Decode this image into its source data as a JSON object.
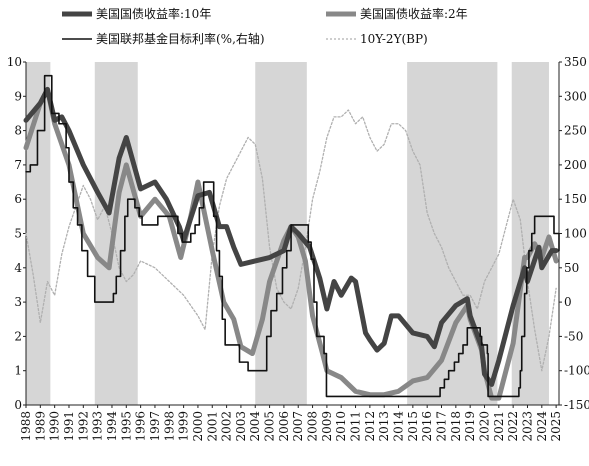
{
  "chart_data": {
    "type": "line",
    "title": "",
    "legend": {
      "placement": "top",
      "entries": [
        {
          "key": "ust10y",
          "label": "美国国债收益率:10年"
        },
        {
          "key": "ust2y",
          "label": "美国国债收益率:2年"
        },
        {
          "key": "ffr",
          "label": "美国联邦基金目标利率(%,右轴)"
        },
        {
          "key": "spread",
          "label": "10Y-2Y(BP)"
        }
      ]
    },
    "left_axis": {
      "min": 0,
      "max": 10,
      "ticks": [
        "0",
        "1",
        "2",
        "3",
        "4",
        "5",
        "6",
        "7",
        "8",
        "9",
        "10"
      ]
    },
    "right_axis": {
      "min": -150,
      "max": 350,
      "ticks": [
        "-150",
        "-100",
        "-50",
        "0",
        "50",
        "100",
        "150",
        "200",
        "250",
        "300",
        "350"
      ]
    },
    "x_axis": {
      "min": 1988,
      "max": 2025.2,
      "ticks": [
        "1988",
        "1989",
        "1990",
        "1991",
        "1992",
        "1993",
        "1994",
        "1995",
        "1996",
        "1997",
        "1998",
        "1999",
        "2000",
        "2001",
        "2002",
        "2003",
        "2004",
        "2005",
        "2006",
        "2007",
        "2008",
        "2009",
        "2010",
        "2011",
        "2012",
        "2013",
        "2014",
        "2015",
        "2016",
        "2017",
        "2018",
        "2019",
        "2020",
        "2021",
        "2022",
        "2023",
        "2024",
        "2025"
      ]
    },
    "shaded_periods": [
      [
        1988.0,
        1989.7
      ],
      [
        1992.8,
        1995.8
      ],
      [
        2004.0,
        2007.6
      ],
      [
        2014.6,
        2020.9
      ],
      [
        2021.9,
        2024.5
      ]
    ],
    "series": [
      {
        "key": "ust10y",
        "color": "#444444",
        "axis": "left",
        "x": [
          1988,
          1989,
          1989.5,
          1990,
          1990.5,
          1991,
          1992,
          1993,
          1993.8,
          1994.5,
          1995,
          1996,
          1997,
          1997.8,
          1998.7,
          1999,
          2000,
          2000.8,
          2001.5,
          2002,
          2002.5,
          2003,
          2004,
          2005,
          2006,
          2006.5,
          2007,
          2007.8,
          2008.5,
          2009,
          2009.5,
          2010,
          2010.7,
          2011,
          2011.7,
          2012,
          2012.5,
          2013,
          2013.5,
          2014,
          2015,
          2016,
          2016.5,
          2017,
          2018,
          2018.8,
          2019,
          2019.8,
          2020,
          2020.5,
          2021,
          2022,
          2022.8,
          2023,
          2023.8,
          2024,
          2024.7,
          2025
        ],
        "y": [
          8.3,
          8.8,
          9.2,
          8.3,
          8.4,
          8.0,
          7.0,
          6.2,
          5.6,
          7.2,
          7.8,
          6.3,
          6.5,
          6.0,
          5.2,
          4.8,
          6.1,
          6.2,
          5.2,
          5.2,
          4.6,
          4.1,
          4.2,
          4.3,
          4.5,
          5.2,
          5.0,
          4.6,
          3.7,
          2.8,
          3.6,
          3.2,
          3.7,
          3.6,
          2.1,
          1.9,
          1.6,
          1.8,
          2.6,
          2.6,
          2.1,
          2.0,
          1.7,
          2.4,
          2.9,
          3.1,
          2.6,
          1.7,
          0.9,
          0.6,
          1.3,
          2.9,
          4.0,
          3.6,
          4.6,
          4.0,
          4.5,
          4.5
        ]
      },
      {
        "key": "ust2y",
        "color": "#888888",
        "axis": "left",
        "x": [
          1988,
          1989,
          1989.5,
          1990,
          1991,
          1992,
          1993,
          1993.8,
          1994.5,
          1995,
          1996,
          1997,
          1998,
          1998.8,
          1999.5,
          2000,
          2001,
          2001.8,
          2002.5,
          2003,
          2003.8,
          2004.5,
          2005,
          2006,
          2006.5,
          2007,
          2007.5,
          2008,
          2008.7,
          2009,
          2010,
          2011,
          2012,
          2013,
          2014,
          2015,
          2016,
          2017,
          2018,
          2018.8,
          2019,
          2019.8,
          2020,
          2020.5,
          2021,
          2022,
          2022.8,
          2023,
          2023.5,
          2024,
          2024.5,
          2025
        ],
        "y": [
          7.5,
          8.8,
          9.2,
          8.2,
          7.0,
          5.0,
          4.3,
          4.0,
          6.2,
          7.0,
          5.5,
          6.0,
          5.5,
          4.3,
          5.5,
          6.5,
          4.5,
          3.0,
          2.5,
          1.7,
          1.5,
          2.5,
          3.6,
          4.8,
          5.2,
          4.9,
          4.2,
          2.6,
          1.5,
          1.0,
          0.8,
          0.4,
          0.3,
          0.3,
          0.4,
          0.7,
          0.8,
          1.3,
          2.4,
          2.9,
          2.5,
          1.6,
          1.0,
          0.2,
          0.2,
          1.8,
          4.3,
          4.3,
          4.7,
          4.3,
          4.9,
          4.2
        ]
      },
      {
        "key": "ffr",
        "color": "#111111",
        "axis": "right",
        "x": [
          1988,
          1988.3,
          1988.8,
          1989.3,
          1989.8,
          1990.3,
          1990.8,
          1991,
          1991.3,
          1991.6,
          1991.9,
          1992.3,
          1992.8,
          1993.5,
          1994.1,
          1994.3,
          1994.6,
          1994.9,
          1995.1,
          1995.6,
          1995.9,
          1996.1,
          1996.9,
          1997.2,
          1998.6,
          1998.9,
          1999.5,
          1999.8,
          2000.1,
          2000.4,
          2001.1,
          2001.3,
          2001.5,
          2001.7,
          2001.9,
          2002.9,
          2003.5,
          2004.5,
          2004.8,
          2005.1,
          2005.5,
          2005.9,
          2006.2,
          2006.5,
          2007.7,
          2007.9,
          2008.1,
          2008.3,
          2008.8,
          2008.97,
          2015.9,
          2016.9,
          2017.2,
          2017.5,
          2017.9,
          2018.2,
          2018.5,
          2018.8,
          2019.5,
          2019.7,
          2019.8,
          2020.2,
          2020.25,
          2022.2,
          2022.4,
          2022.5,
          2022.6,
          2022.8,
          2022.95,
          2023.1,
          2023.3,
          2023.5,
          2024.7,
          2024.85,
          2025.2
        ],
        "y": [
          6.8,
          7.0,
          8.0,
          9.6,
          8.5,
          8.2,
          7.5,
          6.5,
          5.75,
          5.25,
          4.5,
          3.75,
          3.0,
          3.0,
          3.25,
          3.75,
          4.5,
          5.5,
          6.0,
          5.75,
          5.5,
          5.25,
          5.25,
          5.5,
          5.0,
          4.75,
          5.0,
          5.25,
          5.75,
          6.5,
          5.5,
          4.5,
          3.75,
          2.5,
          1.75,
          1.25,
          1.0,
          1.0,
          2.0,
          2.75,
          3.25,
          4.0,
          4.5,
          5.25,
          4.75,
          4.25,
          3.0,
          2.0,
          1.5,
          0.25,
          0.25,
          0.5,
          0.75,
          1.0,
          1.25,
          1.5,
          1.75,
          2.25,
          2.25,
          2.0,
          1.75,
          1.5,
          0.25,
          0.25,
          0.5,
          1.0,
          2.0,
          3.25,
          4.0,
          4.5,
          5.0,
          5.5,
          5.5,
          5.0,
          4.5
        ]
      },
      {
        "key": "spread",
        "color": "#b0b0b0",
        "axis": "right",
        "x": [
          1988,
          1988.5,
          1989,
          1989.5,
          1990,
          1990.5,
          1991,
          1991.5,
          1992,
          1992.5,
          1993,
          1993.5,
          1994,
          1994.5,
          1995,
          1995.5,
          1996,
          1997,
          1998,
          1999,
          2000,
          2000.5,
          2001,
          2001.5,
          2002,
          2002.5,
          2003,
          2003.5,
          2004,
          2004.5,
          2005,
          2005.5,
          2006,
          2006.5,
          2007,
          2007.5,
          2008,
          2008.5,
          2009,
          2009.5,
          2010,
          2010.5,
          2011,
          2011.5,
          2012,
          2012.5,
          2013,
          2013.5,
          2014,
          2014.5,
          2015,
          2015.5,
          2016,
          2016.5,
          2017,
          2017.5,
          2018,
          2018.5,
          2019,
          2019.5,
          2020,
          2020.5,
          2021,
          2021.5,
          2022,
          2022.5,
          2023,
          2023.5,
          2024,
          2024.5,
          2025
        ],
        "y": [
          100,
          40,
          -30,
          30,
          10,
          70,
          110,
          140,
          170,
          150,
          120,
          140,
          100,
          50,
          30,
          40,
          60,
          50,
          30,
          10,
          -20,
          -40,
          70,
          140,
          180,
          200,
          220,
          240,
          230,
          180,
          80,
          20,
          0,
          -10,
          20,
          80,
          150,
          190,
          240,
          270,
          270,
          280,
          260,
          270,
          240,
          220,
          230,
          260,
          260,
          250,
          220,
          200,
          130,
          100,
          80,
          50,
          30,
          10,
          10,
          -10,
          30,
          50,
          70,
          110,
          150,
          120,
          30,
          -40,
          -100,
          -50,
          20
        ]
      }
    ]
  }
}
